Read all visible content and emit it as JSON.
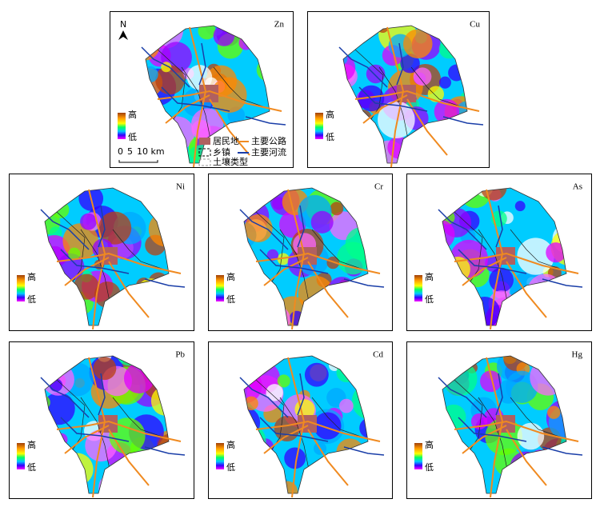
{
  "panels": [
    {
      "label": "Zn",
      "high": "高",
      "low": "低"
    },
    {
      "label": "Cu",
      "high": "高",
      "low": "低"
    },
    {
      "label": "Ni",
      "high": "高",
      "low": "低"
    },
    {
      "label": "Cr",
      "high": "高",
      "low": "低"
    },
    {
      "label": "As",
      "high": "高",
      "low": "低"
    },
    {
      "label": "Pb",
      "high": "高",
      "low": "低"
    },
    {
      "label": "Cd",
      "high": "高",
      "low": "低"
    },
    {
      "label": "Hg",
      "high": "高",
      "low": "低"
    }
  ],
  "north": "N",
  "scale": [
    "0",
    "5",
    "10 km"
  ],
  "legend": {
    "settlement": "居民地",
    "road": "主要公路",
    "town": "乡镇",
    "river": "主要河流",
    "soil": "土壤类型"
  }
}
